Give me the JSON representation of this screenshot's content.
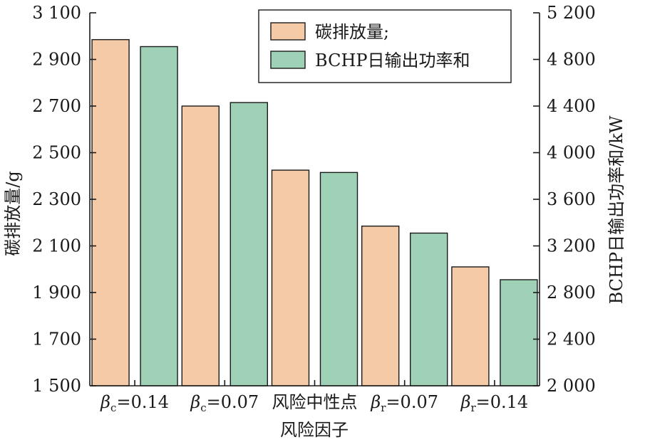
{
  "chart_data": {
    "type": "bar",
    "categories": [
      "βc=0.14",
      "βc=0.07",
      "风险中性点",
      "βr=0.07",
      "βr=0.14"
    ],
    "category_labels": [
      {
        "base": "β",
        "sub": "c",
        "rest": "=0.14"
      },
      {
        "base": "β",
        "sub": "c",
        "rest": "=0.07"
      },
      {
        "base": "风险中性点",
        "sub": "",
        "rest": ""
      },
      {
        "base": "β",
        "sub": "r",
        "rest": "=0.07"
      },
      {
        "base": "β",
        "sub": "r",
        "rest": "=0.14"
      }
    ],
    "series": [
      {
        "name": "碳排放量;",
        "axis": "left",
        "color": "#f5cba7",
        "values": [
          2985,
          2700,
          2425,
          2185,
          2010
        ]
      },
      {
        "name": "BCHP日输出功率和",
        "axis": "right",
        "color": "#9fd1b6",
        "values": [
          4910,
          4430,
          3830,
          3310,
          2910
        ]
      }
    ],
    "xlabel": "风险因子",
    "ylabel": "碳排放量/g",
    "y2label": "BCHP日输出功率和/kW",
    "ylim": [
      1500,
      3100
    ],
    "y2lim": [
      2000,
      5200
    ],
    "yticks": [
      1500,
      1700,
      1900,
      2100,
      2300,
      2500,
      2700,
      2900,
      3100
    ],
    "y2ticks": [
      2000,
      2400,
      2800,
      3200,
      3600,
      4000,
      4400,
      4800,
      5200
    ],
    "ytick_labels": [
      "1 500",
      "1 700",
      "1 900",
      "2 100",
      "2 300",
      "2 500",
      "2 700",
      "2 900",
      "3 100"
    ],
    "y2tick_labels": [
      "2 000",
      "2 400",
      "2 800",
      "3 200",
      "3 600",
      "4 000",
      "4 400",
      "4 800",
      "5 200"
    ],
    "legend_position": "top-right",
    "grid": false
  }
}
